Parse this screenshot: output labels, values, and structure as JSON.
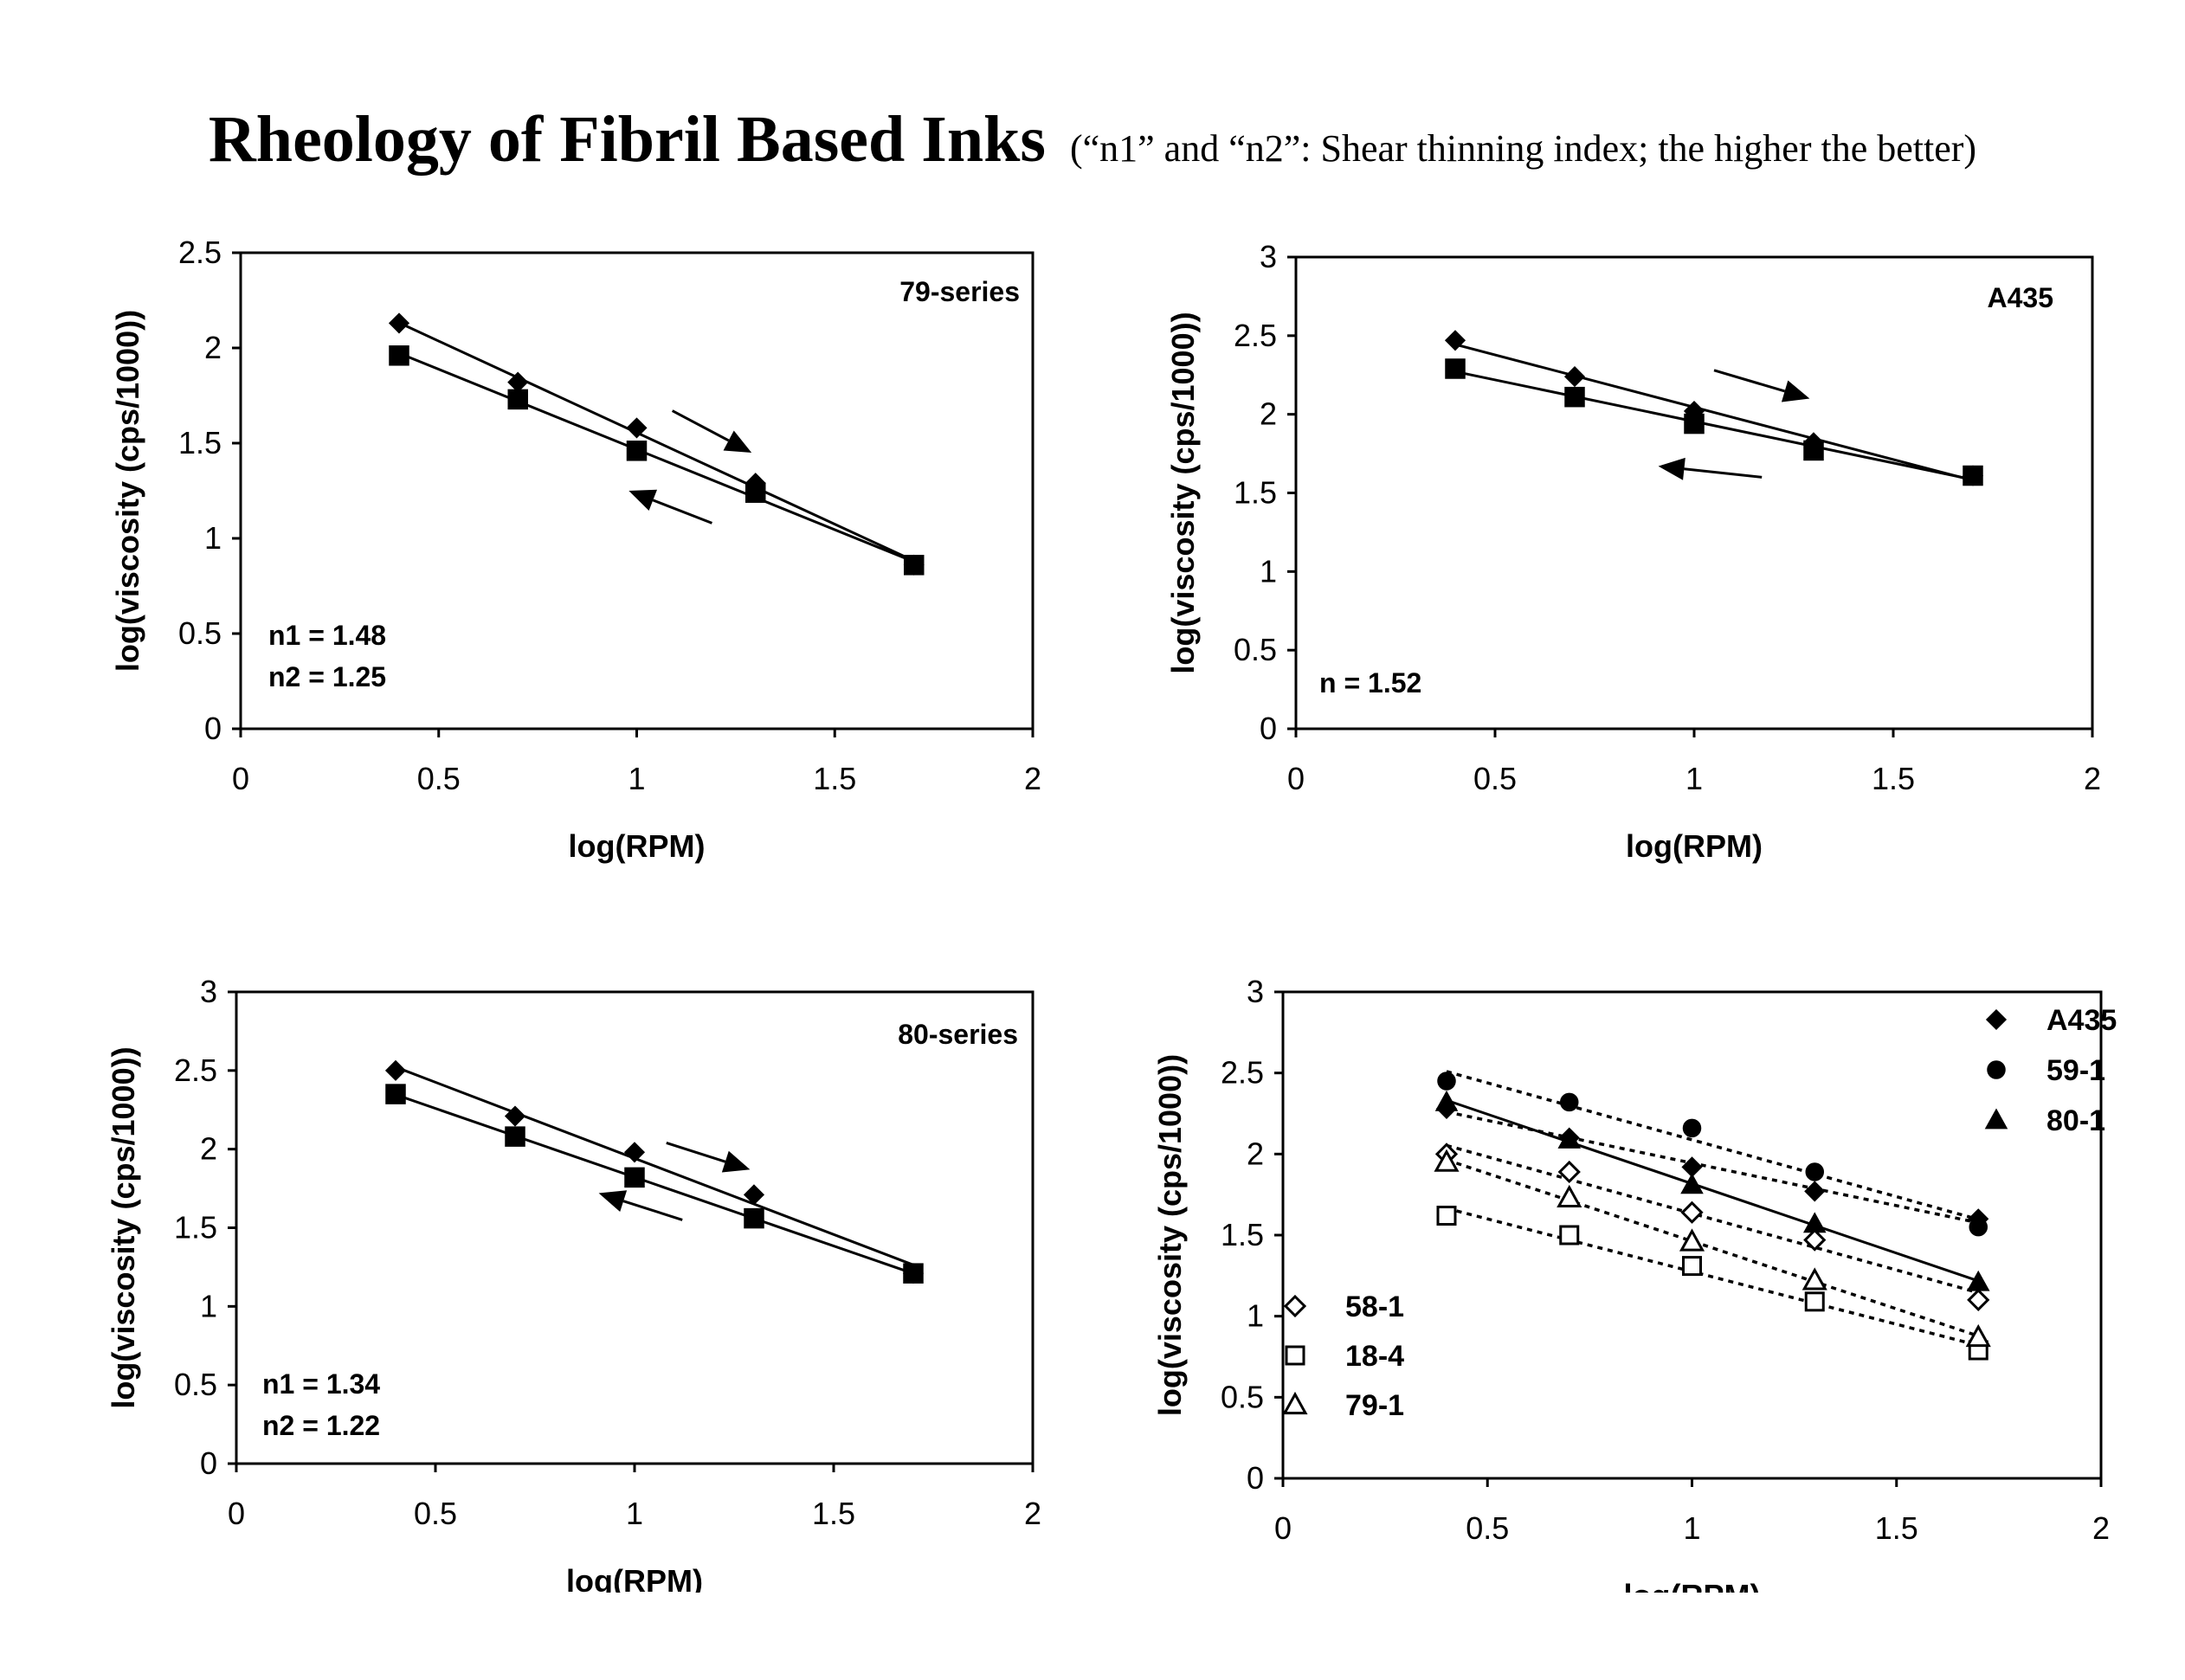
{
  "page": {
    "title": "Rheology of Fibril Based Inks",
    "subtitle": "(“n1” and “n2”:  Shear thinning index; the higher the better)"
  },
  "chart_data": [
    {
      "id": "chart-79-series",
      "type": "line",
      "title": "79-series",
      "xlabel": "log(RPM)",
      "ylabel": "log(viscosity (cps/1000))",
      "xlim": [
        0,
        2
      ],
      "ylim": [
        0,
        2.5
      ],
      "xticks": [
        0,
        0.5,
        1,
        1.5,
        2
      ],
      "yticks": [
        0,
        0.5,
        1,
        1.5,
        2,
        2.5
      ],
      "xtick_labels": [
        "0",
        "0.5",
        "1",
        "1.5",
        "2"
      ],
      "ytick_labels": [
        "0",
        "0.5",
        "1",
        "1.5",
        "2",
        "2.5"
      ],
      "grid": false,
      "series": [
        {
          "marker": "diamond",
          "fill": "filled",
          "line": "solid",
          "x": [
            0.4,
            0.7,
            1.0,
            1.3,
            1.7
          ],
          "y": [
            2.13,
            1.82,
            1.58,
            1.29,
            0.86
          ]
        },
        {
          "marker": "square",
          "fill": "filled",
          "line": "solid",
          "x": [
            0.4,
            0.7,
            1.0,
            1.3,
            1.7
          ],
          "y": [
            1.96,
            1.73,
            1.46,
            1.24,
            0.86
          ]
        }
      ],
      "arrows": [
        {
          "direction": "down-right",
          "from": [
            1.09,
            1.67
          ],
          "to": [
            1.29,
            1.45
          ]
        },
        {
          "direction": "up-left",
          "from": [
            1.19,
            1.08
          ],
          "to": [
            0.98,
            1.25
          ]
        }
      ],
      "annotations": [
        "n1 = 1.48",
        "n2 = 1.25"
      ]
    },
    {
      "id": "chart-a435",
      "type": "line",
      "title": "A435",
      "xlabel": "log(RPM)",
      "ylabel": "log(viscosity (cps/1000))",
      "xlim": [
        0,
        2
      ],
      "ylim": [
        0,
        3
      ],
      "xticks": [
        0,
        0.5,
        1,
        1.5,
        2
      ],
      "yticks": [
        0,
        0.5,
        1,
        1.5,
        2,
        2.5,
        3
      ],
      "xtick_labels": [
        "0",
        "0.5",
        "1",
        "1.5",
        "2"
      ],
      "ytick_labels": [
        "0",
        "0.5",
        "1",
        "1.5",
        "2",
        "2.5",
        "3"
      ],
      "grid": false,
      "series": [
        {
          "marker": "diamond",
          "fill": "filled",
          "line": "solid",
          "x": [
            0.4,
            0.7,
            1.0,
            1.3,
            1.7
          ],
          "y": [
            2.47,
            2.24,
            2.02,
            1.82,
            1.61
          ]
        },
        {
          "marker": "square",
          "fill": "filled",
          "line": "solid",
          "x": [
            0.4,
            0.7,
            1.0,
            1.3,
            1.7
          ],
          "y": [
            2.29,
            2.11,
            1.94,
            1.77,
            1.61
          ]
        }
      ],
      "arrows": [
        {
          "direction": "down-right",
          "from": [
            1.05,
            2.28
          ],
          "to": [
            1.29,
            2.1
          ]
        },
        {
          "direction": "left",
          "from": [
            1.17,
            1.6
          ],
          "to": [
            0.91,
            1.67
          ]
        }
      ],
      "annotations": [
        "n = 1.52"
      ]
    },
    {
      "id": "chart-80-series",
      "type": "line",
      "title": "80-series",
      "xlabel": "log(RPM)",
      "ylabel": "log(viscosity (cps/1000))",
      "xlim": [
        0,
        2
      ],
      "ylim": [
        0,
        3
      ],
      "xticks": [
        0,
        0.5,
        1,
        1.5,
        2
      ],
      "yticks": [
        0,
        0.5,
        1,
        1.5,
        2,
        2.5,
        3
      ],
      "xtick_labels": [
        "0",
        "0.5",
        "1",
        "1.5",
        "2"
      ],
      "ytick_labels": [
        "0",
        "0.5",
        "1",
        "1.5",
        "2",
        "2.5",
        "3"
      ],
      "grid": false,
      "series": [
        {
          "marker": "diamond",
          "fill": "filled",
          "line": "solid",
          "x": [
            0.4,
            0.7,
            1.0,
            1.3,
            1.7
          ],
          "y": [
            2.5,
            2.21,
            1.98,
            1.71,
            1.21
          ]
        },
        {
          "marker": "square",
          "fill": "filled",
          "line": "solid",
          "x": [
            0.4,
            0.7,
            1.0,
            1.3,
            1.7
          ],
          "y": [
            2.35,
            2.08,
            1.82,
            1.56,
            1.21
          ]
        }
      ],
      "arrows": [
        {
          "direction": "down-right",
          "from": [
            1.08,
            2.04
          ],
          "to": [
            1.29,
            1.87
          ]
        },
        {
          "direction": "up-left",
          "from": [
            1.12,
            1.55
          ],
          "to": [
            0.91,
            1.72
          ]
        }
      ],
      "annotations": [
        "n1 = 1.34",
        "n2 = 1.22"
      ]
    },
    {
      "id": "chart-comparison",
      "type": "scatter",
      "title": "",
      "xlabel": "log(RPM)",
      "ylabel": "log(viscosity (cps/1000))",
      "xlim": [
        0,
        2
      ],
      "ylim": [
        0,
        3
      ],
      "xticks": [
        0,
        0.5,
        1,
        1.5,
        2
      ],
      "yticks": [
        0,
        0.5,
        1,
        1.5,
        2,
        2.5,
        3
      ],
      "xtick_labels": [
        "0",
        "0.5",
        "1",
        "1.5",
        "2"
      ],
      "ytick_labels": [
        "0",
        "0.5",
        "1",
        "1.5",
        "2",
        "2.5",
        "3"
      ],
      "grid": false,
      "legend_placement": "top-right and bottom-left",
      "series": [
        {
          "name": "A435",
          "marker": "diamond",
          "fill": "filled",
          "line": "dotted",
          "x": [
            0.4,
            0.7,
            1.0,
            1.3,
            1.7
          ],
          "y": [
            2.28,
            2.1,
            1.92,
            1.77,
            1.6
          ]
        },
        {
          "name": "59-1",
          "marker": "circle",
          "fill": "filled",
          "line": "dotted",
          "x": [
            0.4,
            0.7,
            1.0,
            1.3,
            1.7
          ],
          "y": [
            2.45,
            2.32,
            2.16,
            1.89,
            1.55
          ]
        },
        {
          "name": "80-1",
          "marker": "triangle",
          "fill": "filled",
          "line": "solid",
          "x": [
            0.4,
            0.7,
            1.0,
            1.3,
            1.7
          ],
          "y": [
            2.32,
            2.09,
            1.81,
            1.57,
            1.21
          ]
        },
        {
          "name": "58-1",
          "marker": "diamond",
          "fill": "open",
          "line": "dotted",
          "x": [
            0.4,
            0.7,
            1.0,
            1.3,
            1.7
          ],
          "y": [
            2.0,
            1.89,
            1.64,
            1.47,
            1.1
          ]
        },
        {
          "name": "18-4",
          "marker": "square",
          "fill": "open",
          "line": "dotted",
          "x": [
            0.4,
            0.7,
            1.0,
            1.3,
            1.7
          ],
          "y": [
            1.62,
            1.5,
            1.31,
            1.09,
            0.79
          ]
        },
        {
          "name": "79-1",
          "marker": "triangle",
          "fill": "open",
          "line": "dotted",
          "x": [
            0.4,
            0.7,
            1.0,
            1.3,
            1.7
          ],
          "y": [
            1.95,
            1.73,
            1.46,
            1.22,
            0.87
          ]
        }
      ]
    }
  ]
}
